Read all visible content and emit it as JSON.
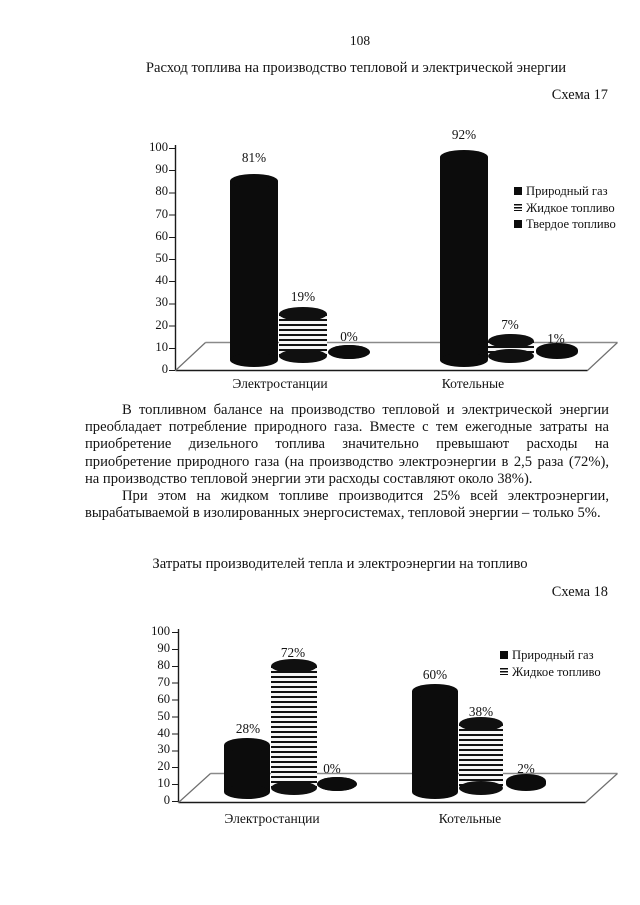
{
  "page_number": "108",
  "section1": {
    "title": "Расход топлива на производство тепловой и электрической энергии",
    "scheme_label": "Схема 17"
  },
  "body": {
    "paragraph1": "В топливном балансе на производство тепловой и электрической энергии преобладает потребление природного газа. Вместе с тем ежегодные затраты на приобретение дизельного топлива значительно превышают расходы на приобретение природного газа (на производство электроэнергии в 2,5 раза (72%), на производство тепловой энергии эти расходы составляют около 38%).",
    "paragraph2": "При этом на жидком топливе производится 25% всей электроэнергии, вырабатываемой в изолированных энергосистемах, тепловой энергии – только 5%."
  },
  "section2": {
    "title": "Затраты производителей тепла и электроэнергии на топливо",
    "scheme_label": "Схема 18"
  },
  "chart_data": [
    {
      "type": "bar",
      "style": "3d-cylinder",
      "title": "Расход топлива на производство тепловой и электрической энергии",
      "categories": [
        "Электростанции",
        "Котельные"
      ],
      "series": [
        {
          "name": "Природный газ",
          "values": [
            81,
            92
          ],
          "labels": [
            "81%",
            "92%"
          ]
        },
        {
          "name": "Жидкое топливо",
          "values": [
            19,
            7
          ],
          "labels": [
            "19%",
            "7%"
          ]
        },
        {
          "name": "Твердое топливо",
          "values": [
            0,
            1
          ],
          "labels": [
            "0%",
            "1%"
          ]
        }
      ],
      "ylim": [
        0,
        100
      ],
      "y_ticks": [
        100,
        90,
        80,
        70,
        60,
        50,
        40,
        30,
        20,
        10,
        0
      ],
      "legend": [
        "Природный газ",
        "Жидкое топливо",
        "Твердое топливо"
      ],
      "legend_position": "right",
      "grid": false
    },
    {
      "type": "bar",
      "style": "3d-cylinder",
      "title": "Затраты производителей тепла и электроэнергии на топливо",
      "categories": [
        "Электростанции",
        "Котельные"
      ],
      "series": [
        {
          "name": "Природный газ",
          "values": [
            28,
            60
          ],
          "labels": [
            "28%",
            "60%"
          ]
        },
        {
          "name": "Жидкое топливо",
          "values": [
            72,
            38
          ],
          "labels": [
            "72%",
            "38%"
          ]
        },
        {
          "name": "",
          "values": [
            0,
            2
          ],
          "labels": [
            "0%",
            "2%"
          ]
        }
      ],
      "ylim": [
        0,
        100
      ],
      "y_ticks": [
        100,
        90,
        80,
        70,
        60,
        50,
        40,
        30,
        20,
        10,
        0
      ],
      "legend": [
        "Природный газ",
        "Жидкое топливо"
      ],
      "legend_position": "right",
      "grid": false
    }
  ],
  "colors": {
    "ink": "#131313",
    "paper": "#ffffff",
    "floor_line": "#8a8a8a"
  }
}
